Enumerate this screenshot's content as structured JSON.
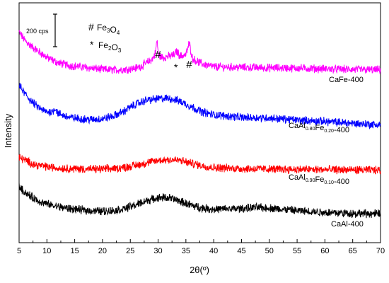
{
  "chart_data": {
    "type": "line",
    "xlabel": "2θ(º)",
    "ylabel": "Intensity",
    "xlim": [
      5,
      70
    ],
    "xticks": [
      5,
      10,
      15,
      20,
      25,
      30,
      35,
      40,
      45,
      50,
      55,
      60,
      65,
      70
    ],
    "scale_bar": {
      "label": "200 cps",
      "value": 200
    },
    "legend": [
      {
        "symbol": "#",
        "label": "Fe3O4",
        "base": "Fe",
        "sub1": "3",
        "mid": "O",
        "sub2": "4"
      },
      {
        "symbol": "*",
        "label": "Fe2O3",
        "base": "Fe",
        "sub1": "2",
        "mid": "O",
        "sub2": "3"
      }
    ],
    "peak_markers": [
      {
        "symbol": "#",
        "x": 30.0,
        "series": "CaFe-400"
      },
      {
        "symbol": "*",
        "x": 33.2,
        "series": "CaFe-400"
      },
      {
        "symbol": "#",
        "x": 35.6,
        "series": "CaFe-400"
      }
    ],
    "series": [
      {
        "name": "CaFe-400",
        "label_parts": {
          "base": "CaFe-400"
        },
        "color": "#ff00ff",
        "x": [
          5,
          6,
          7,
          8,
          9,
          10,
          12,
          14,
          16,
          18,
          20,
          22,
          24,
          26,
          27,
          28,
          29,
          29.5,
          29.8,
          30.1,
          31,
          32,
          33,
          33.3,
          34,
          35,
          35.6,
          36.2,
          38,
          40,
          45,
          50,
          55,
          60,
          65,
          70
        ],
        "y": [
          1090,
          1060,
          1040,
          1025,
          1010,
          995,
          975,
          965,
          960,
          955,
          950,
          948,
          950,
          955,
          962,
          975,
          990,
          1010,
          1060,
          1000,
          995,
          1000,
          1005,
          1020,
          1000,
          1005,
          1050,
          990,
          970,
          960,
          958,
          956,
          955,
          952,
          950,
          948
        ]
      },
      {
        "name": "CaAl0.80Fe0.20-400",
        "label_parts": {
          "base": "CaAl",
          "sub1": "0.80",
          "mid": "Fe",
          "sub2": "0.20",
          "end": "-400"
        },
        "color": "#0000ff",
        "x": [
          5,
          6,
          7,
          8,
          9,
          10,
          11,
          11.5,
          12,
          14,
          16,
          18,
          20,
          22,
          24,
          26,
          28,
          30,
          32,
          34,
          36,
          38,
          40,
          45,
          50,
          55,
          60,
          65,
          70
        ],
        "y": [
          890,
          860,
          835,
          815,
          800,
          790,
          792,
          805,
          785,
          770,
          765,
          762,
          765,
          775,
          795,
          820,
          835,
          840,
          842,
          830,
          810,
          790,
          780,
          770,
          768,
          760,
          755,
          748,
          742
        ]
      },
      {
        "name": "CaAl0.90Fe0.10-400",
        "label_parts": {
          "base": "CaAl",
          "sub1": "0.90",
          "mid": "Fe",
          "sub2": "0.10",
          "end": "-400"
        },
        "color": "#ff0000",
        "x": [
          5,
          6,
          7,
          8,
          10,
          12,
          14,
          16,
          18,
          20,
          22,
          24,
          26,
          28,
          30,
          32,
          34,
          36,
          38,
          40,
          45,
          50,
          55,
          60,
          65,
          70
        ],
        "y": [
          620,
          610,
          600,
          592,
          585,
          580,
          578,
          577,
          576,
          576,
          578,
          583,
          590,
          600,
          608,
          612,
          608,
          598,
          588,
          582,
          578,
          576,
          575,
          574,
          573,
          572
        ]
      },
      {
        "name": "CaAl-400",
        "label_parts": {
          "base": "CaAl-400"
        },
        "color": "#000000",
        "x": [
          5,
          6,
          7,
          8,
          9,
          10,
          12,
          14,
          16,
          18,
          20,
          22,
          24,
          26,
          28,
          30,
          31,
          32,
          34,
          36,
          38,
          40,
          45,
          48,
          50,
          55,
          60,
          65,
          70
        ],
        "y": [
          510,
          490,
          475,
          462,
          452,
          445,
          435,
          428,
          423,
          420,
          418,
          420,
          428,
          442,
          458,
          468,
          470,
          468,
          455,
          440,
          430,
          425,
          428,
          432,
          430,
          420,
          414,
          410,
          408
        ]
      }
    ]
  }
}
